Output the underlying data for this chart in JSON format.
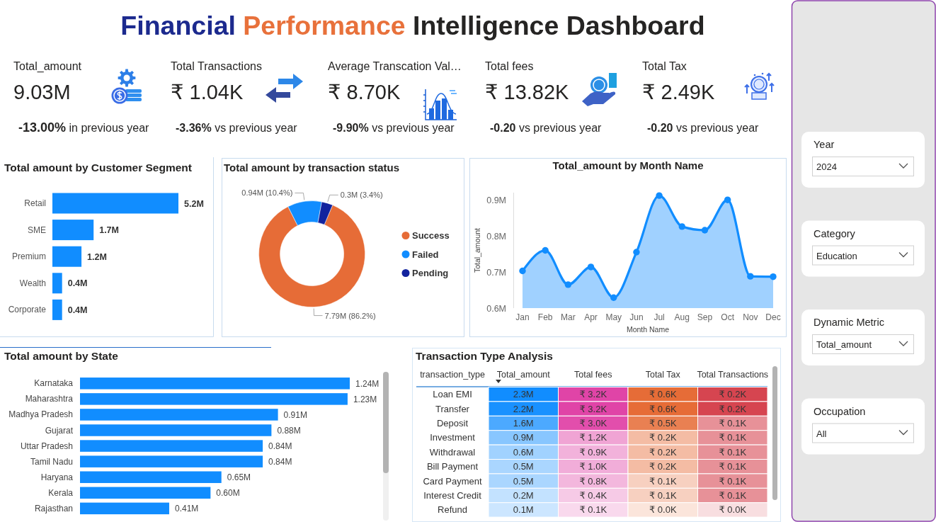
{
  "chart_data": [
    {
      "type": "other",
      "title": "Financial Performance Intelligence Dashboard",
      "annotations": [
        "Total_amount",
        "9.03M",
        "-13.00% in previous year",
        "Total Transactions",
        "₹ 1.04K",
        "-3.36% vs previous year",
        "Average Transcation Val…",
        "₹ 8.70K",
        "-9.90% vs previous year",
        "Total fees",
        "₹ 13.82K",
        "-0.20 vs previous year",
        "Total Tax",
        "₹ 2.49K",
        "-0.20 vs previous year"
      ]
    },
    {
      "type": "bar",
      "orientation": "horizontal",
      "title": "Total amount by Customer Segment",
      "categories": [
        "Retail",
        "SME",
        "Premium",
        "Wealth",
        "Corporate"
      ],
      "values": [
        5.2,
        1.7,
        1.2,
        0.4,
        0.4
      ],
      "value_labels": [
        "5.2M",
        "1.7M",
        "1.2M",
        "0.4M",
        "0.4M"
      ],
      "color": "#118dff"
    },
    {
      "type": "donut",
      "title": "Total amount by transaction status",
      "categories": [
        "Success",
        "Failed",
        "Pending"
      ],
      "values": [
        86.2,
        10.4,
        3.4
      ],
      "value_labels": [
        "7.79M (86.2%)",
        "0.94M (10.4%)",
        "0.3M (3.4%)"
      ],
      "colors": [
        "#e66c37",
        "#118dff",
        "#12239e"
      ],
      "legend": "right"
    },
    {
      "type": "area",
      "title": "Total_amount by Month Name",
      "xlabel": "Month Name",
      "ylabel": "Total_amount",
      "categories": [
        "Jan",
        "Feb",
        "Mar",
        "Apr",
        "May",
        "Jun",
        "Jul",
        "Aug",
        "Sep",
        "Oct",
        "Nov",
        "Dec"
      ],
      "values": [
        0.703,
        0.76,
        0.665,
        0.714,
        0.629,
        0.755,
        0.912,
        0.826,
        0.816,
        0.9,
        0.688,
        0.687
      ],
      "color": "#118dff",
      "marker": "circle",
      "ylim": [
        0.6,
        0.92
      ],
      "yticks": [
        {
          "value": 0.6,
          "label": "0.6M"
        },
        {
          "value": 0.7,
          "label": "0.7M"
        },
        {
          "value": 0.8,
          "label": "0.8M"
        },
        {
          "value": 0.9,
          "label": "0.9M"
        }
      ]
    },
    {
      "type": "bar",
      "orientation": "horizontal",
      "title": "Total amount by State",
      "categories": [
        "Karnataka",
        "Maharashtra",
        "Madhya Pradesh",
        "Gujarat",
        "Uttar Pradesh",
        "Tamil Nadu",
        "Haryana",
        "Kerala",
        "Rajasthan"
      ],
      "values": [
        1.24,
        1.23,
        0.91,
        0.88,
        0.84,
        0.84,
        0.65,
        0.6,
        0.41
      ],
      "value_labels": [
        "1.24M",
        "1.23M",
        "0.91M",
        "0.88M",
        "0.84M",
        "0.84M",
        "0.65M",
        "0.60M",
        "0.41M"
      ],
      "color": "#118dff"
    },
    {
      "type": "heatmap",
      "title": "Transaction Type Analysis",
      "ylabel": "transaction_type",
      "categories": [
        "Total_amount",
        "Total fees",
        "Total Tax",
        "Total Transactions"
      ],
      "y_categories": [
        "Loan EMI",
        "Transfer",
        "Deposit",
        "Investment",
        "Withdrawal",
        "Bill Payment",
        "Card Payment",
        "Interest Credit",
        "Refund"
      ],
      "cells": [
        [
          2.3,
          3.2,
          0.6,
          0.2
        ],
        [
          2.2,
          3.2,
          0.6,
          0.2
        ],
        [
          1.6,
          3.0,
          0.5,
          0.1
        ],
        [
          0.9,
          1.2,
          0.2,
          0.1
        ],
        [
          0.6,
          0.9,
          0.2,
          0.1
        ],
        [
          0.5,
          1.0,
          0.2,
          0.1
        ],
        [
          0.5,
          0.8,
          0.1,
          0.1
        ],
        [
          0.2,
          0.4,
          0.1,
          0.1
        ],
        [
          0.1,
          0.1,
          0.0,
          0.0
        ]
      ],
      "cell_labels": [
        [
          "2.3M",
          "₹ 3.2K",
          "₹ 0.6K",
          "₹ 0.2K"
        ],
        [
          "2.2M",
          "₹ 3.2K",
          "₹ 0.6K",
          "₹ 0.2K"
        ],
        [
          "1.6M",
          "₹ 3.0K",
          "₹ 0.5K",
          "₹ 0.1K"
        ],
        [
          "0.9M",
          "₹ 1.2K",
          "₹ 0.2K",
          "₹ 0.1K"
        ],
        [
          "0.6M",
          "₹ 0.9K",
          "₹ 0.2K",
          "₹ 0.1K"
        ],
        [
          "0.5M",
          "₹ 1.0K",
          "₹ 0.2K",
          "₹ 0.1K"
        ],
        [
          "0.5M",
          "₹ 0.8K",
          "₹ 0.1K",
          "₹ 0.1K"
        ],
        [
          "0.2M",
          "₹ 0.4K",
          "₹ 0.1K",
          "₹ 0.1K"
        ],
        [
          "0.1M",
          "₹ 0.1K",
          "₹ 0.0K",
          "₹ 0.0K"
        ]
      ],
      "colors": [
        "#118dff",
        "#e044a7",
        "#e66c37",
        "#d64550"
      ]
    },
    {
      "type": "other",
      "annotations": [
        "Year",
        "2024",
        "Category",
        "Education",
        "Dynamic Metric",
        "Total_amount",
        "Occupation",
        "All"
      ]
    }
  ]
}
